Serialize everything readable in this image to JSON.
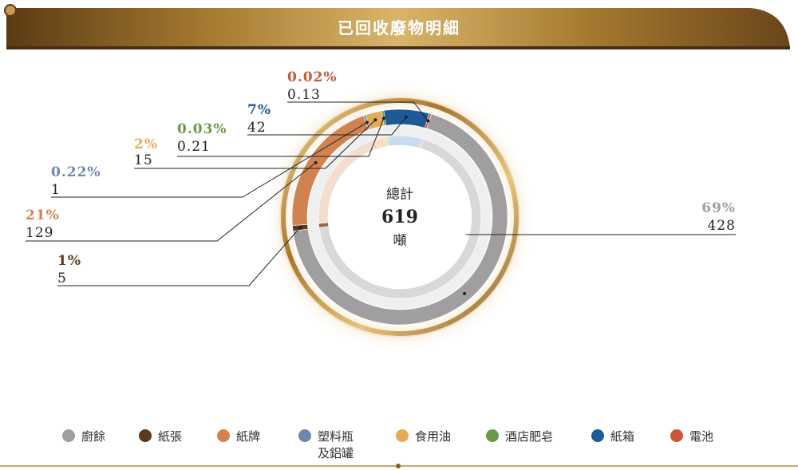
{
  "header": {
    "title": "已回收廢物明細"
  },
  "chart_data": {
    "type": "donut",
    "center": {
      "line1": "總計",
      "total": "619",
      "unit": "噸"
    },
    "series": [
      {
        "key": "kitchen",
        "name": "廚餘",
        "value": 428,
        "value_label": "428",
        "percent_label": "69%",
        "color": "#a09ea0",
        "inner_color": "#d9d8d9"
      },
      {
        "key": "paper",
        "name": "紙張",
        "value": 5,
        "value_label": "5",
        "percent_label": "1%",
        "color": "#5a3a1c",
        "inner_color": "#8a6a4c"
      },
      {
        "key": "cardboard",
        "name": "紙牌",
        "value": 129,
        "value_label": "129",
        "percent_label": "21%",
        "color": "#d08350",
        "inner_color": "#f3ddce"
      },
      {
        "key": "plastic",
        "name": "塑料瓶\n及鋁罐",
        "value": 1,
        "value_label": "1",
        "percent_label": "0.22%",
        "color": "#6f86aa",
        "inner_color": "#c3cde0"
      },
      {
        "key": "oil",
        "name": "食用油",
        "value": 15,
        "value_label": "15",
        "percent_label": "2%",
        "color": "#e6aa56",
        "inner_color": "#f6dfba"
      },
      {
        "key": "soap",
        "name": "酒店肥皂",
        "value": 0.21,
        "value_label": "0.21",
        "percent_label": "0.03%",
        "color": "#6a9a48",
        "inner_color": "#c8dcb8"
      },
      {
        "key": "box",
        "name": "紙箱",
        "value": 42,
        "value_label": "42",
        "percent_label": "7%",
        "color": "#1e5a96",
        "inner_color": "#c7dcef"
      },
      {
        "key": "battery",
        "name": "電池",
        "value": 0.13,
        "value_label": "0.13",
        "percent_label": "0.02%",
        "color": "#c9573a",
        "inner_color": "#edc2b4"
      }
    ],
    "legend_position": "bottom",
    "label_sides": {
      "kitchen": "right",
      "paper": "left",
      "cardboard": "left",
      "plastic": "left",
      "oil": "left",
      "soap": "left",
      "box": "left",
      "battery": "left"
    }
  },
  "colors": {
    "gold": "#b8893d",
    "gold_dark": "#6e4a1c",
    "line": "#222222"
  }
}
